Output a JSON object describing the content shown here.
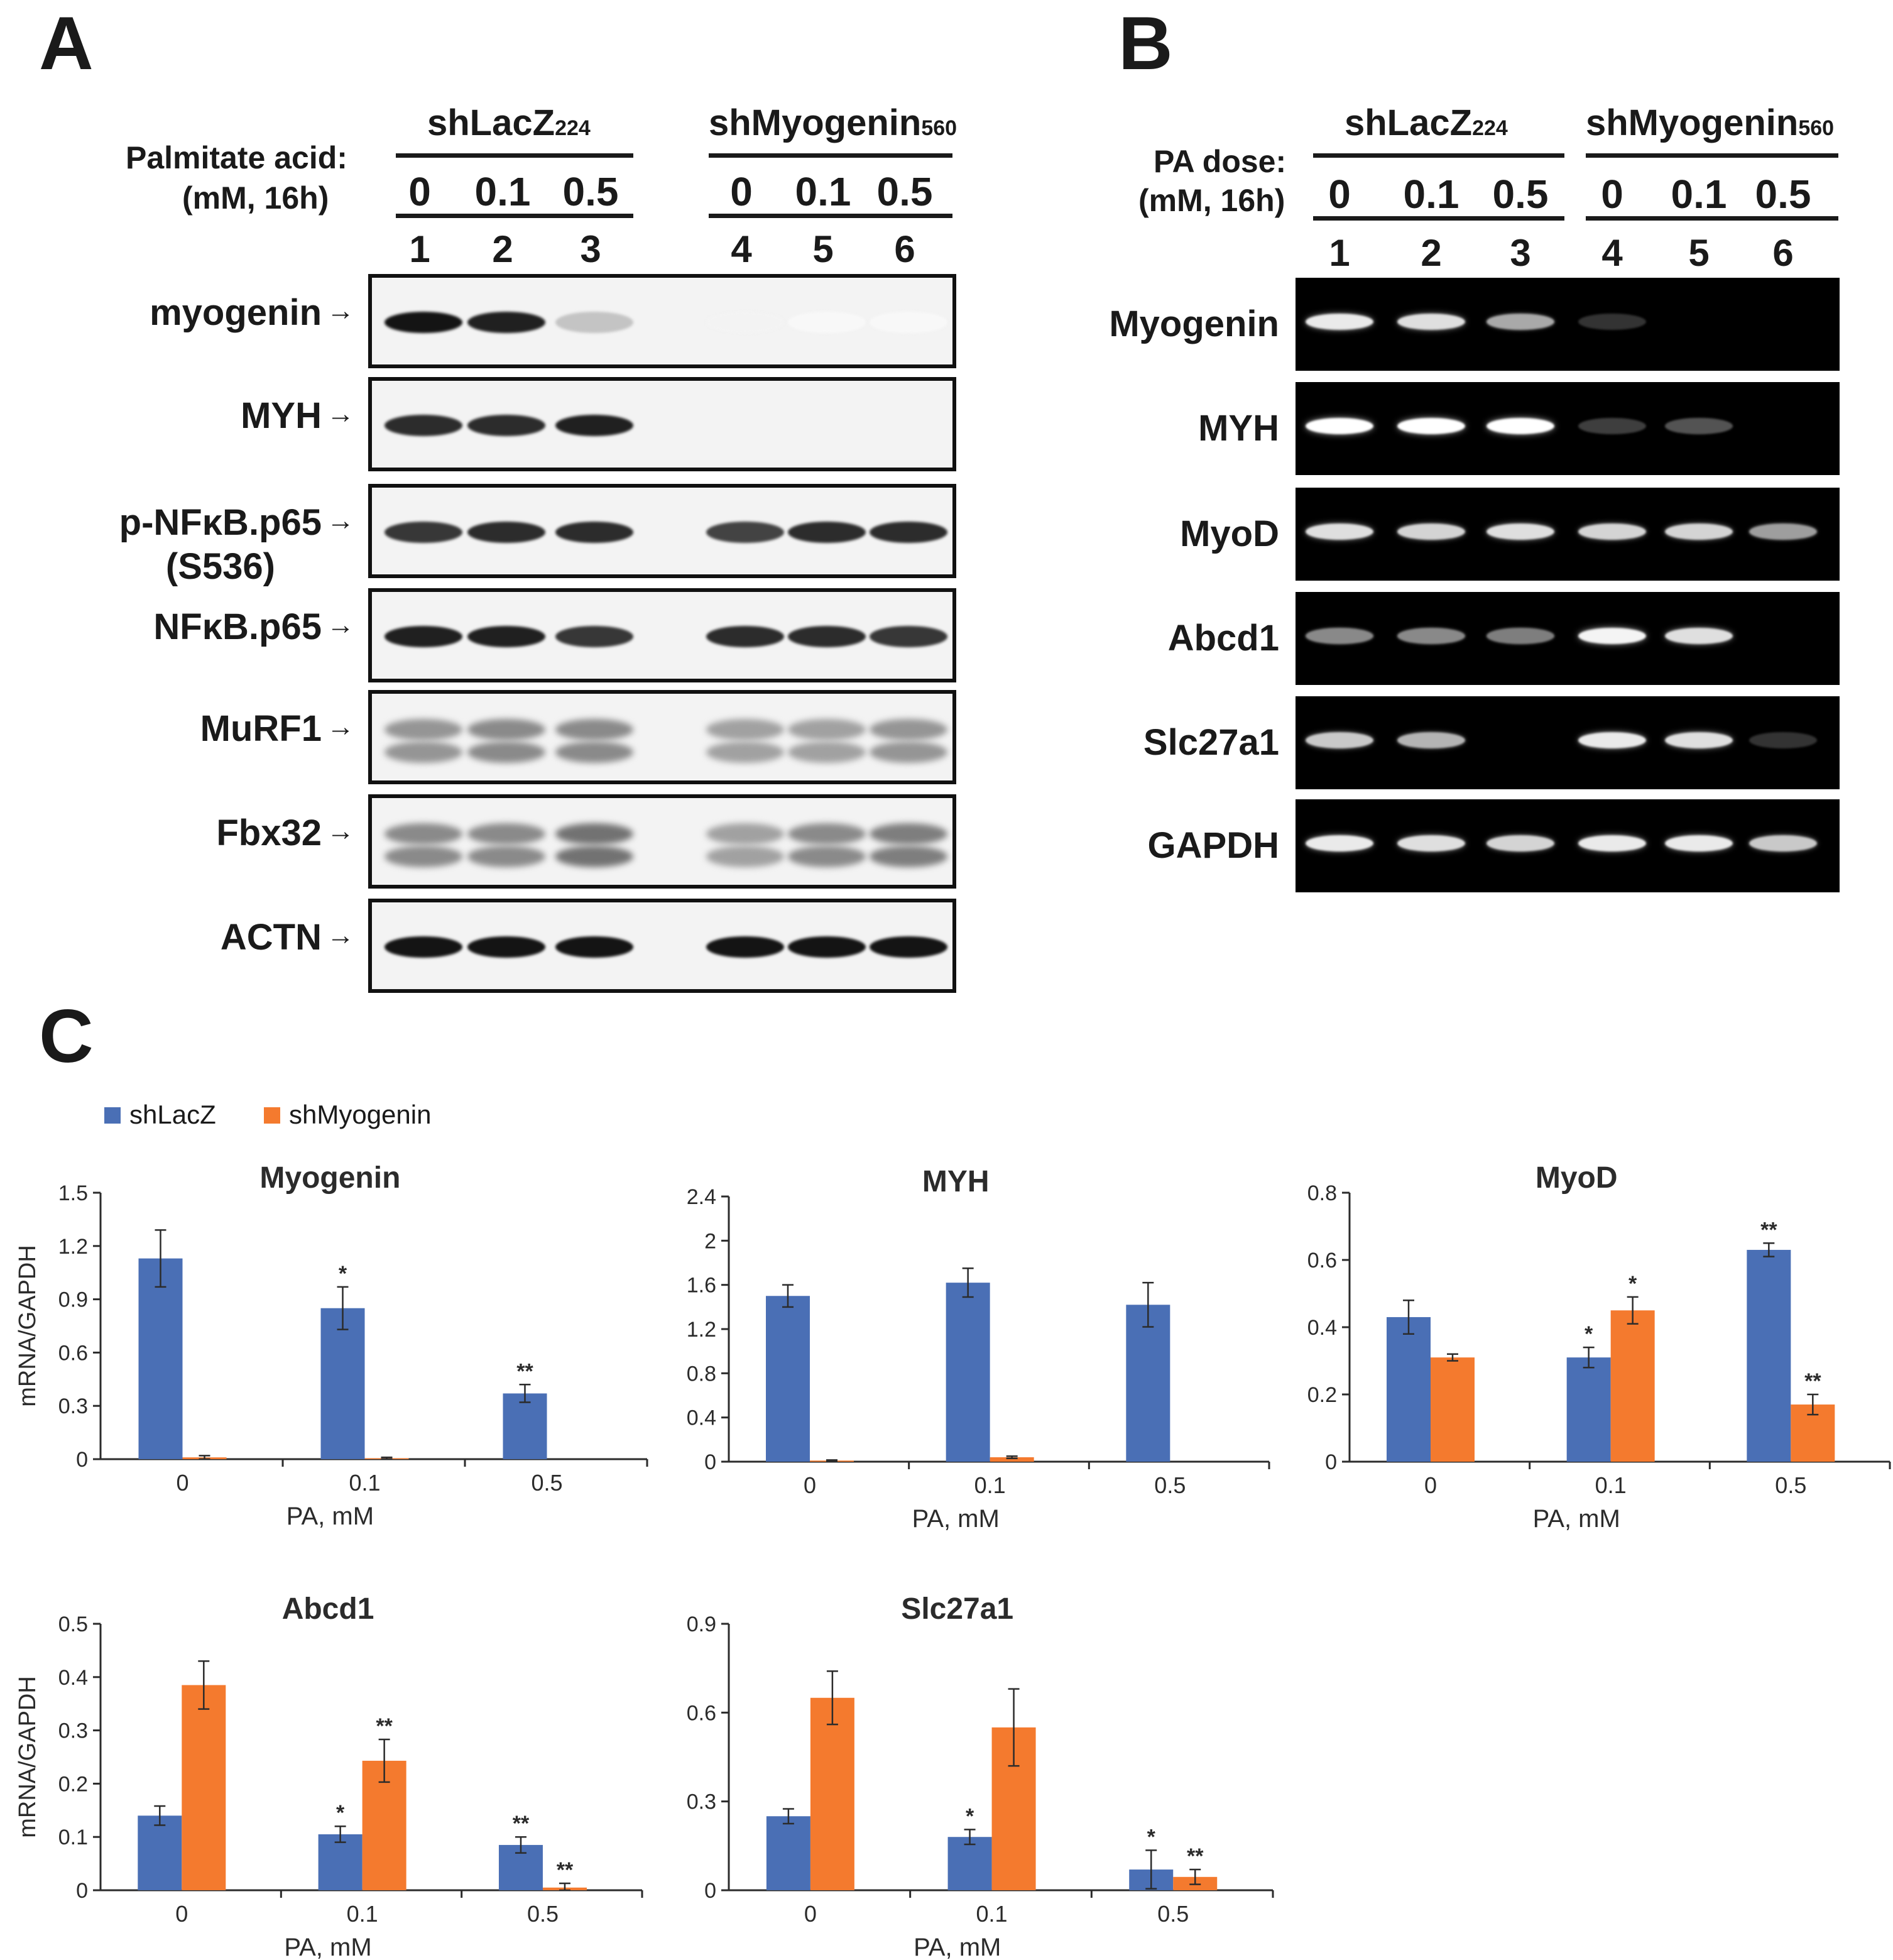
{
  "panelA": {
    "letter": "A",
    "condition_label_1": "Palmitate acid:",
    "condition_label_2": "(mM, 16h)",
    "group1": {
      "name": "shLacZ",
      "sub": "224"
    },
    "group2": {
      "name": "shMyogenin",
      "sub": "560"
    },
    "doses": [
      "0",
      "0.1",
      "0.5",
      "0",
      "0.1",
      "0.5"
    ],
    "lanes": [
      "1",
      "2",
      "3",
      "4",
      "5",
      "6"
    ],
    "arrow": "→",
    "rows": [
      {
        "label": "myogenin",
        "levels": [
          1.0,
          0.95,
          0.25,
          0.05,
          0.03,
          0.03
        ]
      },
      {
        "label": "MYH",
        "levels": [
          0.9,
          0.9,
          0.95,
          0,
          0,
          0
        ]
      },
      {
        "label": "p-NFκB.p65",
        "label2": "(S536)",
        "levels": [
          0.85,
          0.9,
          0.9,
          0.8,
          0.9,
          0.9
        ]
      },
      {
        "label": "NFκB.p65",
        "levels": [
          0.95,
          0.95,
          0.85,
          0.9,
          0.9,
          0.85
        ]
      },
      {
        "label": "MuRF1",
        "levels": [
          0.45,
          0.5,
          0.5,
          0.4,
          0.4,
          0.45
        ]
      },
      {
        "label": "Fbx32",
        "levels": [
          0.5,
          0.5,
          0.6,
          0.4,
          0.5,
          0.55
        ]
      },
      {
        "label": "ACTN",
        "levels": [
          1.0,
          1.0,
          1.0,
          1.0,
          1.0,
          1.0
        ]
      }
    ]
  },
  "panelB": {
    "letter": "B",
    "condition_label_1": "PA dose:",
    "condition_label_2": "(mM, 16h)",
    "group1": {
      "name": "shLacZ",
      "sub": "224"
    },
    "group2": {
      "name": "shMyogenin",
      "sub": "560"
    },
    "doses": [
      "0",
      "0.1",
      "0.5",
      "0",
      "0.1",
      "0.5"
    ],
    "lanes": [
      "1",
      "2",
      "3",
      "4",
      "5",
      "6"
    ],
    "rows": [
      {
        "label": "Myogenin",
        "levels": [
          0.9,
          0.85,
          0.6,
          0.05,
          0,
          0
        ]
      },
      {
        "label": "MYH",
        "levels": [
          1.0,
          1.0,
          1.0,
          0.1,
          0.2,
          0
        ]
      },
      {
        "label": "MyoD",
        "levels": [
          0.85,
          0.8,
          0.85,
          0.8,
          0.8,
          0.55
        ]
      },
      {
        "label": "Abcd1",
        "levels": [
          0.45,
          0.45,
          0.4,
          0.95,
          0.85,
          0
        ]
      },
      {
        "label": "Slc27a1",
        "levels": [
          0.75,
          0.65,
          0,
          0.9,
          0.85,
          0.05
        ]
      },
      {
        "label": "GAPDH",
        "levels": [
          0.9,
          0.85,
          0.8,
          0.9,
          0.9,
          0.75
        ]
      }
    ]
  },
  "panelC": {
    "letter": "C",
    "legend": [
      {
        "name": "shLacZ",
        "color": "#4a6fb5"
      },
      {
        "name": "shMyogenin",
        "color": "#f47a2e"
      }
    ],
    "ylabel": "mRNA/GAPDH",
    "xlabel": "PA, mM"
  },
  "chart_data": [
    {
      "type": "bar",
      "title": "Myogenin",
      "xlabel": "PA, mM",
      "ylabel": "mRNA/GAPDH",
      "categories": [
        "0",
        "0.1",
        "0.5"
      ],
      "ylim": [
        0,
        1.5
      ],
      "yticks": [
        "0",
        "0.3",
        "0.6",
        "0.9",
        "1.2",
        "1.5"
      ],
      "series": [
        {
          "name": "shLacZ",
          "values": [
            1.13,
            0.85,
            0.37
          ],
          "errors": [
            0.16,
            0.12,
            0.05
          ],
          "stars": [
            "",
            "*",
            "**"
          ]
        },
        {
          "name": "shMyogenin",
          "values": [
            0.01,
            0.005,
            0
          ],
          "errors": [
            0.01,
            0.005,
            0
          ],
          "stars": [
            "",
            "",
            ""
          ]
        }
      ]
    },
    {
      "type": "bar",
      "title": "MYH",
      "xlabel": "PA, mM",
      "ylabel": "",
      "categories": [
        "0",
        "0.1",
        "0.5"
      ],
      "ylim": [
        0,
        2.4
      ],
      "yticks": [
        "0",
        "0.4",
        "0.8",
        "1.2",
        "1.6",
        "2",
        "2.4"
      ],
      "series": [
        {
          "name": "shLacZ",
          "values": [
            1.5,
            1.62,
            1.42
          ],
          "errors": [
            0.1,
            0.13,
            0.2
          ],
          "stars": [
            "",
            "",
            ""
          ]
        },
        {
          "name": "shMyogenin",
          "values": [
            0.01,
            0.04,
            0
          ],
          "errors": [
            0.005,
            0.01,
            0
          ],
          "stars": [
            "",
            "",
            ""
          ]
        }
      ]
    },
    {
      "type": "bar",
      "title": "MyoD",
      "xlabel": "PA, mM",
      "ylabel": "",
      "categories": [
        "0",
        "0.1",
        "0.5"
      ],
      "ylim": [
        0,
        0.8
      ],
      "yticks": [
        "0",
        "0.2",
        "0.4",
        "0.6",
        "0.8"
      ],
      "series": [
        {
          "name": "shLacZ",
          "values": [
            0.43,
            0.31,
            0.63
          ],
          "errors": [
            0.05,
            0.03,
            0.02
          ],
          "stars": [
            "",
            "*",
            "**"
          ]
        },
        {
          "name": "shMyogenin",
          "values": [
            0.31,
            0.45,
            0.17
          ],
          "errors": [
            0.01,
            0.04,
            0.03
          ],
          "stars": [
            "",
            "*",
            "**"
          ]
        }
      ]
    },
    {
      "type": "bar",
      "title": "Abcd1",
      "xlabel": "PA, mM",
      "ylabel": "mRNA/GAPDH",
      "categories": [
        "0",
        "0.1",
        "0.5"
      ],
      "ylim": [
        0,
        0.5
      ],
      "yticks": [
        "0",
        "0.1",
        "0.2",
        "0.3",
        "0.4",
        "0.5"
      ],
      "series": [
        {
          "name": "shLacZ",
          "values": [
            0.14,
            0.105,
            0.085
          ],
          "errors": [
            0.018,
            0.015,
            0.015
          ],
          "stars": [
            "",
            "*",
            "**"
          ]
        },
        {
          "name": "shMyogenin",
          "values": [
            0.385,
            0.243,
            0.005
          ],
          "errors": [
            0.045,
            0.04,
            0.008
          ],
          "stars": [
            "",
            "**",
            "**"
          ]
        }
      ]
    },
    {
      "type": "bar",
      "title": "Slc27a1",
      "xlabel": "PA, mM",
      "ylabel": "",
      "categories": [
        "0",
        "0.1",
        "0.5"
      ],
      "ylim": [
        0,
        0.9
      ],
      "yticks": [
        "0",
        "0.3",
        "0.6",
        "0.9"
      ],
      "series": [
        {
          "name": "shLacZ",
          "values": [
            0.25,
            0.18,
            0.07
          ],
          "errors": [
            0.025,
            0.025,
            0.065
          ],
          "stars": [
            "",
            "*",
            "*"
          ]
        },
        {
          "name": "shMyogenin",
          "values": [
            0.65,
            0.55,
            0.045
          ],
          "errors": [
            0.09,
            0.13,
            0.025
          ],
          "stars": [
            "",
            "",
            "**"
          ]
        }
      ]
    }
  ]
}
